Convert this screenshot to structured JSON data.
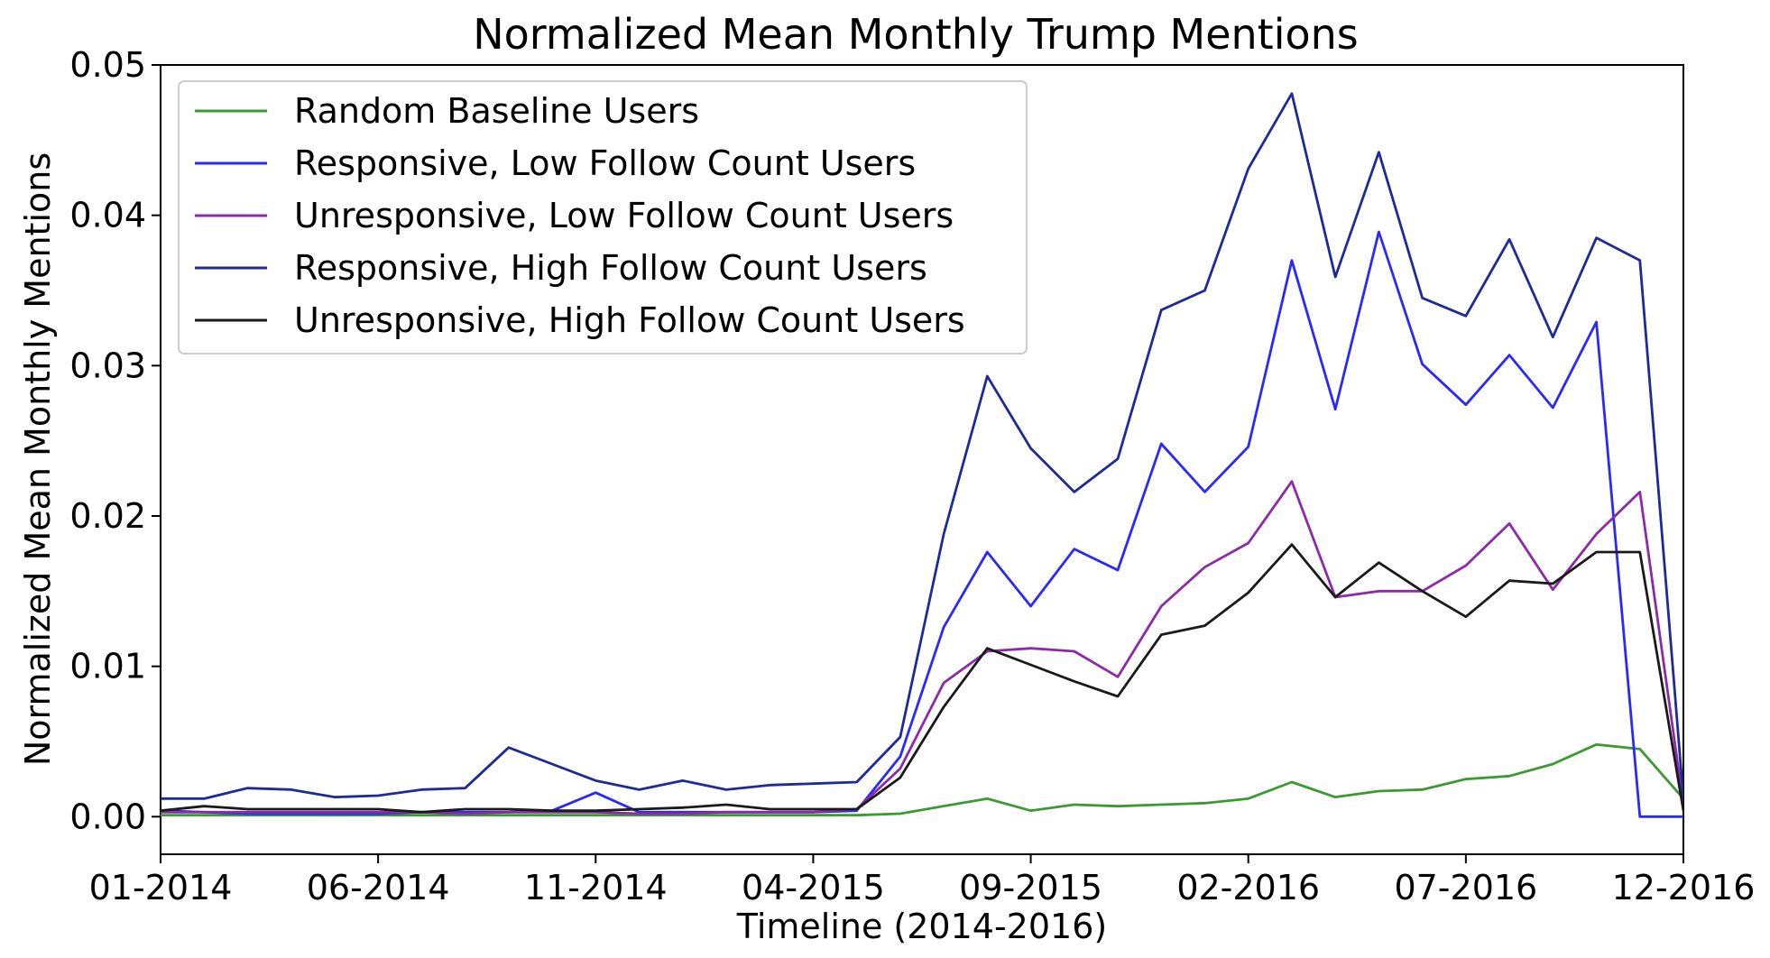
{
  "chart_data": {
    "type": "line",
    "title": "Normalized Mean Monthly Trump Mentions",
    "xlabel": "Timeline (2014-2016)",
    "ylabel": "Normalized Mean Monthly Mentions",
    "xlim": [
      0,
      35
    ],
    "ylim": [
      -0.0025,
      0.05
    ],
    "yticks": [
      0.0,
      0.01,
      0.02,
      0.03,
      0.04,
      0.05
    ],
    "ytick_labels": [
      "0.00",
      "0.01",
      "0.02",
      "0.03",
      "0.04",
      "0.05"
    ],
    "xticks": [
      0,
      5,
      10,
      15,
      20,
      25,
      30,
      35
    ],
    "xtick_labels": [
      "01-2014",
      "06-2014",
      "11-2014",
      "04-2015",
      "09-2015",
      "02-2016",
      "07-2016",
      "12-2016"
    ],
    "legend_position": "top-left",
    "grid": false,
    "x": [
      0,
      1,
      2,
      3,
      4,
      5,
      6,
      7,
      8,
      9,
      10,
      11,
      12,
      13,
      14,
      15,
      16,
      17,
      18,
      19,
      20,
      21,
      22,
      23,
      24,
      25,
      26,
      27,
      28,
      29,
      30,
      31,
      32,
      33,
      34,
      35
    ],
    "series": [
      {
        "name": "Random Baseline Users",
        "color": "#3c9a32",
        "values": [
          0.0001,
          0.0001,
          0.0001,
          0.0001,
          0.0001,
          0.0001,
          0.0001,
          0.0001,
          0.0001,
          0.0001,
          0.0001,
          0.0001,
          0.0001,
          0.0001,
          0.0001,
          0.0001,
          0.0001,
          0.0002,
          0.0007,
          0.0012,
          0.0004,
          0.0008,
          0.0007,
          0.0008,
          0.0009,
          0.0012,
          0.0023,
          0.0013,
          0.0017,
          0.0018,
          0.0025,
          0.0027,
          0.0035,
          0.0048,
          0.0045,
          0.0012
        ]
      },
      {
        "name": "Responsive, Low Follow Count Users",
        "color": "#2828ff",
        "values": [
          0.0004,
          0.0003,
          0.0002,
          0.0002,
          0.0002,
          0.0002,
          0.0003,
          0.0003,
          0.0003,
          0.0004,
          0.0016,
          0.0003,
          0.0003,
          0.0003,
          0.0003,
          0.0003,
          0.0004,
          0.004,
          0.0126,
          0.0176,
          0.014,
          0.0178,
          0.0164,
          0.0248,
          0.0216,
          0.0246,
          0.037,
          0.0271,
          0.0389,
          0.0301,
          0.0274,
          0.0307,
          0.0272,
          0.0329,
          0.0,
          0.0
        ]
      },
      {
        "name": "Unresponsive, Low Follow Count Users",
        "color": "#8b2ba8",
        "values": [
          0.0003,
          0.0003,
          0.0003,
          0.0003,
          0.0003,
          0.0003,
          0.0003,
          0.0002,
          0.0003,
          0.0003,
          0.0003,
          0.0002,
          0.0002,
          0.0003,
          0.0003,
          0.0003,
          0.0005,
          0.0032,
          0.0089,
          0.011,
          0.0112,
          0.011,
          0.0093,
          0.014,
          0.0166,
          0.0182,
          0.0223,
          0.0146,
          0.015,
          0.015,
          0.0167,
          0.0195,
          0.0151,
          0.0188,
          0.0216,
          0.0008
        ]
      },
      {
        "name": "Responsive, High Follow Count Users",
        "color": "#1e2a9a",
        "values": [
          0.0012,
          0.0012,
          0.0019,
          0.0018,
          0.0013,
          0.0014,
          0.0018,
          0.0019,
          0.0046,
          0.0035,
          0.0024,
          0.0018,
          0.0024,
          0.0018,
          0.0021,
          0.0022,
          0.0023,
          0.0053,
          0.0188,
          0.0293,
          0.0245,
          0.0216,
          0.0238,
          0.0337,
          0.035,
          0.0431,
          0.0481,
          0.0359,
          0.0442,
          0.0345,
          0.0333,
          0.0384,
          0.0319,
          0.0385,
          0.037,
          0.0012
        ]
      },
      {
        "name": "Unresponsive, High Follow Count Users",
        "color": "#1a1a1a",
        "values": [
          0.0004,
          0.0007,
          0.0005,
          0.0005,
          0.0005,
          0.0005,
          0.0003,
          0.0005,
          0.0005,
          0.0004,
          0.0004,
          0.0005,
          0.0006,
          0.0008,
          0.0005,
          0.0005,
          0.0005,
          0.0026,
          0.0073,
          0.0112,
          0.0101,
          0.009,
          0.008,
          0.0121,
          0.0127,
          0.0149,
          0.0181,
          0.0146,
          0.0169,
          0.015,
          0.0133,
          0.0157,
          0.0155,
          0.0176,
          0.0176,
          0.0004
        ]
      }
    ]
  }
}
